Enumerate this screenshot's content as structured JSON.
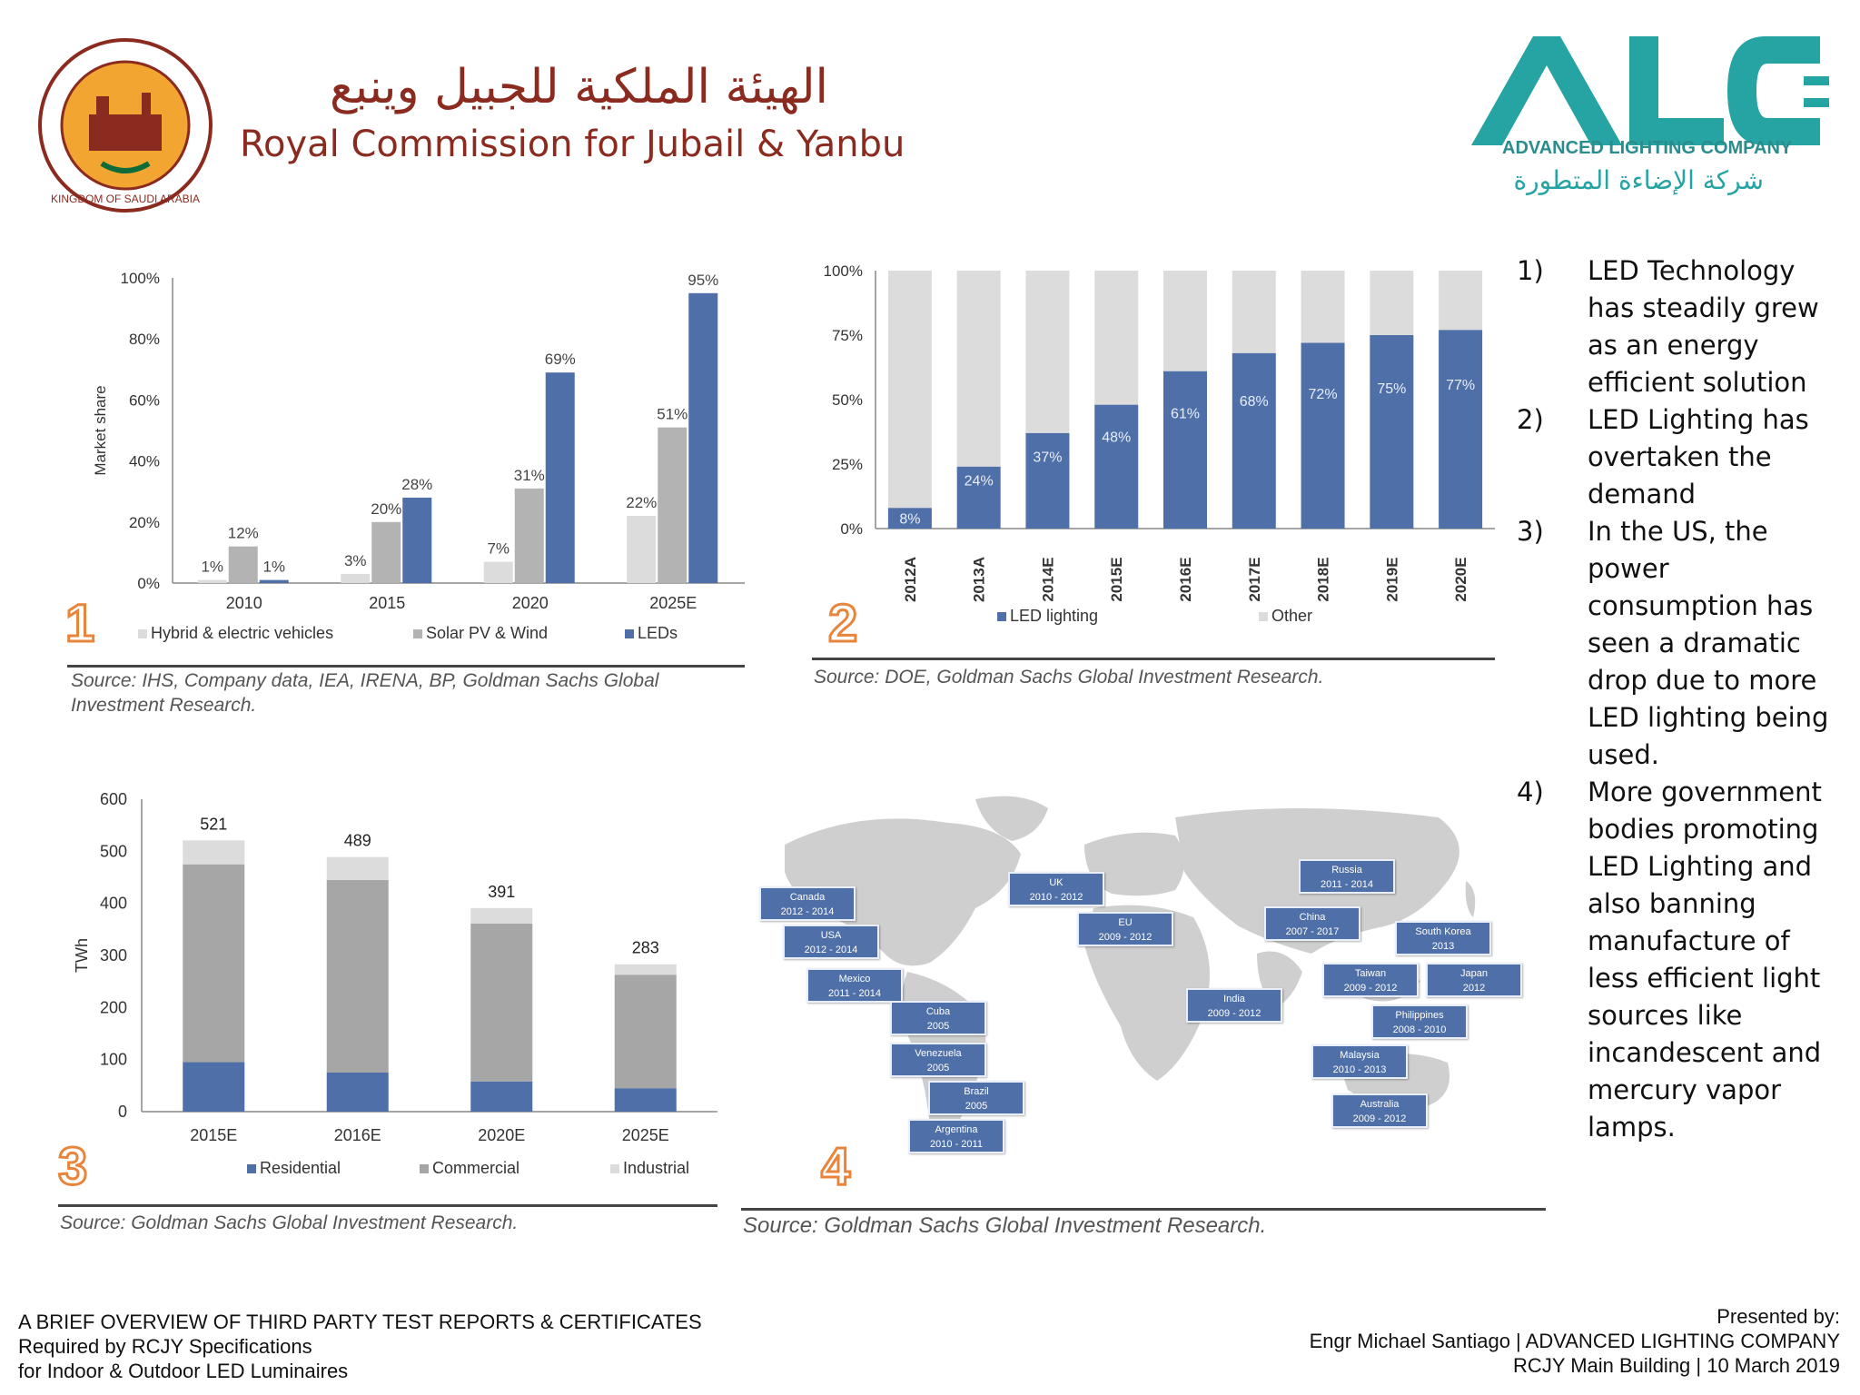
{
  "header": {
    "rc_arabic": "الهيئة الملكية للجبيل وينبع",
    "rc_english": "Royal Commission for Jubail & Yanbu",
    "seal_text": "KINGDOM OF SAUDI ARABIA",
    "alc_logo_text": "ALC",
    "alc_english": "ADVANCED LIGHTING COMPANY",
    "alc_arabic": "شركة الإضاءة المتطورة"
  },
  "colors": {
    "accent": "#e9853a",
    "dark_blue": "#4f6fa8",
    "light_gray": "#dcdcdc",
    "mid_gray": "#b3b3b3",
    "teal": "#26a3a3"
  },
  "panels": {
    "p1": {
      "number": "1",
      "source": "Source: IHS, Company data, IEA, IRENA, BP, Goldman Sachs Global Investment Research."
    },
    "p2": {
      "number": "2",
      "source": "Source:  DOE, Goldman Sachs Global Investment Research."
    },
    "p3": {
      "number": "3",
      "source": "Source: Goldman Sachs Global Investment Research."
    },
    "p4": {
      "number": "4",
      "source": "Source: Goldman Sachs Global Investment Research."
    }
  },
  "chart_data": [
    {
      "type": "bar",
      "ylabel": "Market share",
      "ylim": [
        0,
        100
      ],
      "yticks": [
        "0%",
        "20%",
        "40%",
        "60%",
        "80%",
        "100%"
      ],
      "categories": [
        "2010",
        "2015",
        "2020",
        "2025E"
      ],
      "series": [
        {
          "name": "Hybrid & electric vehicles",
          "values": [
            1,
            3,
            7,
            22
          ],
          "labels": [
            "1%",
            "3%",
            "7%",
            "22%"
          ],
          "color": "#dcdcdc"
        },
        {
          "name": "Solar PV & Wind",
          "values": [
            12,
            20,
            31,
            51
          ],
          "labels": [
            "12%",
            "20%",
            "31%",
            "51%"
          ],
          "color": "#b3b3b3"
        },
        {
          "name": "LEDs",
          "values": [
            1,
            28,
            69,
            95
          ],
          "labels": [
            "1%",
            "28%",
            "69%",
            "95%"
          ],
          "color": "#4f6fa8"
        }
      ],
      "legend": "bottom"
    },
    {
      "type": "bar",
      "stacked": true,
      "ylim": [
        0,
        100
      ],
      "yticks": [
        "0%",
        "25%",
        "50%",
        "75%",
        "100%"
      ],
      "categories": [
        "2012A",
        "2013A",
        "2014E",
        "2015E",
        "2016E",
        "2017E",
        "2018E",
        "2019E",
        "2020E"
      ],
      "series": [
        {
          "name": "LED lighting",
          "values": [
            8,
            24,
            37,
            48,
            61,
            68,
            72,
            75,
            77
          ],
          "labels": [
            "8%",
            "24%",
            "37%",
            "48%",
            "61%",
            "68%",
            "72%",
            "75%",
            "77%"
          ],
          "color": "#4f6fa8"
        },
        {
          "name": "Other",
          "values": [
            92,
            76,
            63,
            52,
            39,
            32,
            28,
            25,
            23
          ],
          "color": "#dcdcdc"
        }
      ],
      "legend": "bottom"
    },
    {
      "type": "bar",
      "stacked": true,
      "ylabel": "TWh",
      "ylim": [
        0,
        600
      ],
      "yticks": [
        "0",
        "100",
        "200",
        "300",
        "400",
        "500",
        "600"
      ],
      "categories": [
        "2015E",
        "2016E",
        "2020E",
        "2025E"
      ],
      "totals": [
        "521",
        "489",
        "391",
        "283"
      ],
      "series": [
        {
          "name": "Residential",
          "values": [
            95,
            75,
            58,
            45
          ],
          "color": "#4f6fa8"
        },
        {
          "name": "Commercial",
          "values": [
            380,
            370,
            303,
            218
          ],
          "color": "#a6a6a6"
        },
        {
          "name": "Industrial",
          "values": [
            46,
            44,
            30,
            20
          ],
          "color": "#dcdcdc"
        }
      ],
      "legend": "bottom"
    }
  ],
  "map": {
    "labels": [
      {
        "name": "Canada",
        "years": "2012 - 2014"
      },
      {
        "name": "USA",
        "years": "2012 - 2014"
      },
      {
        "name": "Mexico",
        "years": "2011 - 2014"
      },
      {
        "name": "Cuba",
        "years": "2005"
      },
      {
        "name": "Venezuela",
        "years": "2005"
      },
      {
        "name": "Brazil",
        "years": "2005"
      },
      {
        "name": "Argentina",
        "years": "2010 - 2011"
      },
      {
        "name": "UK",
        "years": "2010 - 2012"
      },
      {
        "name": "EU",
        "years": "2009 - 2012"
      },
      {
        "name": "Russia",
        "years": "2011 - 2014"
      },
      {
        "name": "China",
        "years": "2007 - 2017"
      },
      {
        "name": "South Korea",
        "years": "2013"
      },
      {
        "name": "India",
        "years": "2009 - 2012"
      },
      {
        "name": "Taiwan",
        "years": "2009 - 2012"
      },
      {
        "name": "Japan",
        "years": "2012"
      },
      {
        "name": "Philippines",
        "years": "2008 - 2010"
      },
      {
        "name": "Malaysia",
        "years": "2010 - 2013"
      },
      {
        "name": "Australia",
        "years": "2009 - 2012"
      }
    ]
  },
  "bullets": [
    {
      "num": "1)",
      "text": "LED Technology has steadily grew as an energy efficient solution"
    },
    {
      "num": "2)",
      "text": "LED Lighting has overtaken the demand"
    },
    {
      "num": "3)",
      "text": "In the US, the power consumption has seen a dramatic drop due to more LED lighting being used."
    },
    {
      "num": "4)",
      "text": "More government bodies promoting LED Lighting and also banning manufacture of less efficient light sources like incandescent and mercury vapor lamps."
    }
  ],
  "footer": {
    "left_line1": "A BRIEF OVERVIEW OF THIRD PARTY TEST REPORTS & CERTIFICATES",
    "left_line2": "Required by RCJY Specifications",
    "left_line3": "for Indoor & Outdoor LED Luminaires",
    "right_line1": "Presented by:",
    "right_line2": "Engr Michael Santiago | ADVANCED LIGHTING COMPANY",
    "right_line3": "RCJY Main Building | 10 March 2019"
  }
}
